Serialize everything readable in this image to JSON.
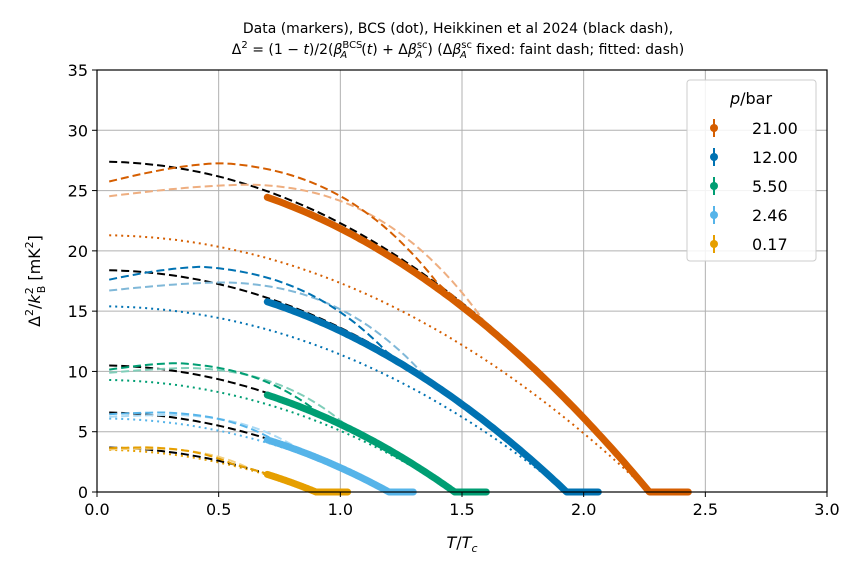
{
  "chart_data": {
    "type": "line",
    "title_line1": "Data (markers), BCS (dot), Heikkinen et al 2024 (black dash),",
    "title_line2": "Δ² = (1 − t)/2(β_A^BCS(t) + Δβ_A^sc) (Δβ_A^sc fixed: faint dash; fitted: dash)",
    "xlabel": "T/T_c",
    "ylabel": "Δ²/k_B² [mK²]",
    "xlim": [
      0.0,
      3.0
    ],
    "ylim": [
      0,
      35
    ],
    "xticks": [
      "0.0",
      "0.5",
      "1.0",
      "1.5",
      "2.0",
      "2.5",
      "3.0"
    ],
    "yticks": [
      "0",
      "5",
      "10",
      "15",
      "20",
      "25",
      "30",
      "35"
    ],
    "grid": true,
    "legend": {
      "title": "p/bar",
      "location": "top-right",
      "entries": [
        "21.00",
        "12.00",
        "5.50",
        "2.46",
        "0.17"
      ]
    },
    "series": [
      {
        "name": "21.00",
        "color": "#d55e00",
        "light_color": "#eeae80",
        "tc": 2.27,
        "gap0_black": 27.4,
        "gap0_bcs": 21.3,
        "fitted_start": 25.5,
        "fitted_peak": 27.3,
        "fixed_start": 24.4,
        "fixed_peak": 25.5,
        "data_x_start": 0.7,
        "data_x_end": 2.43
      },
      {
        "name": "12.00",
        "color": "#0072b2",
        "light_color": "#80b8d8",
        "tc": 1.93,
        "gap0_black": 18.4,
        "gap0_bcs": 15.4,
        "fitted_start": 17.4,
        "fitted_peak": 18.7,
        "fixed_start": 16.6,
        "fixed_peak": 17.4,
        "data_x_start": 0.7,
        "data_x_end": 2.06
      },
      {
        "name": "5.50",
        "color": "#009e73",
        "light_color": "#80ceb9",
        "tc": 1.47,
        "gap0_black": 10.5,
        "gap0_bcs": 9.3,
        "fitted_start": 10.0,
        "fitted_peak": 10.7,
        "fixed_start": 9.8,
        "fixed_peak": 10.3,
        "data_x_start": 0.7,
        "data_x_end": 1.6
      },
      {
        "name": "2.46",
        "color": "#56b4e9",
        "light_color": "#aad9f4",
        "tc": 1.2,
        "gap0_black": 6.6,
        "gap0_bcs": 6.1,
        "fitted_start": 6.4,
        "fitted_peak": 6.6,
        "fixed_start": 6.2,
        "fixed_peak": 6.4,
        "data_x_start": 0.7,
        "data_x_end": 1.3
      },
      {
        "name": "0.17",
        "color": "#e69f00",
        "light_color": "#f2cf80",
        "tc": 0.9,
        "gap0_black": 3.7,
        "gap0_bcs": 3.5,
        "fitted_start": 3.6,
        "fitted_peak": 3.7,
        "fixed_start": 3.5,
        "fixed_peak": 3.6,
        "data_x_start": 0.7,
        "data_x_end": 1.03
      }
    ]
  }
}
